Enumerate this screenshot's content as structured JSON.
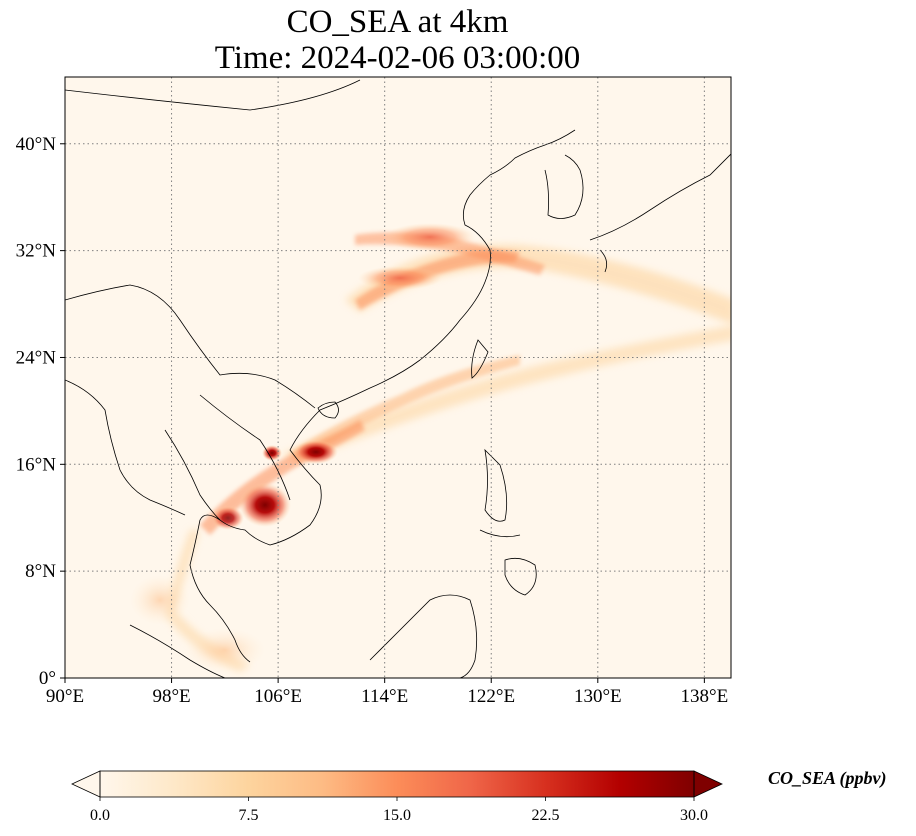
{
  "title": {
    "line1": "CO_SEA at 4km",
    "line2": "Time: 2024-02-06 03:00:00"
  },
  "map": {
    "lon_range": [
      90,
      140
    ],
    "lat_range": [
      0,
      45
    ],
    "gridlines": "dotted",
    "lon_ticks": [
      {
        "value": 90,
        "label": "90°E"
      },
      {
        "value": 98,
        "label": "98°E"
      },
      {
        "value": 106,
        "label": "106°E"
      },
      {
        "value": 114,
        "label": "114°E"
      },
      {
        "value": 122,
        "label": "122°E"
      },
      {
        "value": 130,
        "label": "130°E"
      },
      {
        "value": 138,
        "label": "138°E"
      }
    ],
    "lat_ticks": [
      {
        "value": 0,
        "label": "0°"
      },
      {
        "value": 8,
        "label": "8°N"
      },
      {
        "value": 16,
        "label": "16°N"
      },
      {
        "value": 24,
        "label": "24°N"
      },
      {
        "value": 32,
        "label": "32°N"
      },
      {
        "value": 40,
        "label": "40°N"
      }
    ],
    "plumes": [
      {
        "name": "indochina-fire-core",
        "lon": 104.7,
        "lat": 13.0,
        "value": 30
      },
      {
        "name": "indochina-fire-secondary",
        "lon": 102.5,
        "lat": 12.0,
        "value": 24
      },
      {
        "name": "vietnam-coast-hotspot",
        "lon": 108.0,
        "lat": 16.8,
        "value": 26
      },
      {
        "name": "laos-hotspot",
        "lon": 105.5,
        "lat": 17.0,
        "value": 24
      },
      {
        "name": "east-china-band",
        "lon": 117.5,
        "lat": 32.5,
        "value": 12
      },
      {
        "name": "central-china-band",
        "lon": 114.0,
        "lat": 30.0,
        "value": 11
      },
      {
        "name": "pacific-outflow",
        "lon": 135.0,
        "lat": 26.0,
        "value": 5
      }
    ]
  },
  "colorbar": {
    "min": 0.0,
    "max": 30.0,
    "colormap": "OrRd",
    "extend": "both",
    "ticks": [
      "0.0",
      "7.5",
      "15.0",
      "22.5",
      "30.0"
    ],
    "label": "CO_SEA (ppbv)"
  },
  "colors": {
    "background_low": "#fff7ec",
    "mid": "#fc8d59",
    "high": "#7f0000",
    "gridline": "#808080",
    "coastline": "#000000"
  }
}
